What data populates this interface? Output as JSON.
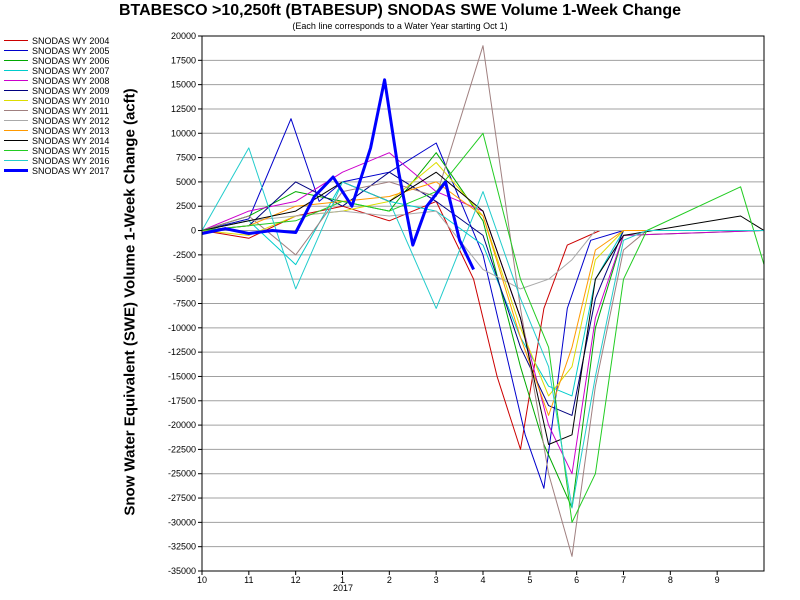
{
  "chart_data": {
    "type": "line",
    "title": "BTABESCO >10,250ft (BTABESUP) SNODAS SWE Volume 1-Week Change",
    "subtitle": "(Each line corresponds to a Water Year starting Oct 1)",
    "ylabel": "Snow Water Equivalent (SWE) Volume 1-Week Change (acft)",
    "xlabel": "",
    "x_axis_label_sub": "2017",
    "ylim": [
      -35000,
      20000
    ],
    "yticks": [
      20000,
      17500,
      15000,
      12500,
      10000,
      7500,
      5000,
      2500,
      0,
      -2500,
      -5000,
      -7500,
      -10000,
      -12500,
      -15000,
      -17500,
      -20000,
      -22500,
      -25000,
      -27500,
      -30000,
      -32500,
      -35000
    ],
    "xlim_months": [
      0,
      12
    ],
    "xticks": [
      {
        "month": 0,
        "label": "10"
      },
      {
        "month": 1,
        "label": "11"
      },
      {
        "month": 2,
        "label": "12"
      },
      {
        "month": 3,
        "label": "1"
      },
      {
        "month": 4,
        "label": "2"
      },
      {
        "month": 5,
        "label": "3"
      },
      {
        "month": 6,
        "label": "4"
      },
      {
        "month": 7,
        "label": "5"
      },
      {
        "month": 8,
        "label": "6"
      },
      {
        "month": 9,
        "label": "7"
      },
      {
        "month": 10,
        "label": "8"
      },
      {
        "month": 11,
        "label": "9"
      }
    ],
    "grid": true,
    "legend_position": "left",
    "series": [
      {
        "name": "SNODAS WY 2004",
        "color": "#cc0000",
        "points": [
          [
            0,
            0
          ],
          [
            1,
            -800
          ],
          [
            2,
            1500
          ],
          [
            3,
            2500
          ],
          [
            4,
            1000
          ],
          [
            5,
            3000
          ],
          [
            5.8,
            -5000
          ],
          [
            6.3,
            -15000
          ],
          [
            6.8,
            -22500
          ],
          [
            7.3,
            -8000
          ],
          [
            7.8,
            -1500
          ],
          [
            8.5,
            0
          ],
          [
            12,
            0
          ]
        ]
      },
      {
        "name": "SNODAS WY 2005",
        "color": "#0000cc",
        "points": [
          [
            0,
            0
          ],
          [
            1,
            1200
          ],
          [
            1.9,
            11500
          ],
          [
            2.5,
            3000
          ],
          [
            3,
            5000
          ],
          [
            4,
            6000
          ],
          [
            5,
            9000
          ],
          [
            6,
            -2500
          ],
          [
            6.9,
            -21000
          ],
          [
            7.3,
            -26500
          ],
          [
            7.8,
            -8000
          ],
          [
            8.3,
            -1000
          ],
          [
            9,
            0
          ],
          [
            12,
            0
          ]
        ]
      },
      {
        "name": "SNODAS WY 2006",
        "color": "#00aa00",
        "points": [
          [
            0,
            0
          ],
          [
            1,
            1500
          ],
          [
            2,
            4000
          ],
          [
            3,
            3000
          ],
          [
            4,
            2000
          ],
          [
            5,
            8000
          ],
          [
            6,
            1000
          ],
          [
            6.8,
            -14000
          ],
          [
            7.3,
            -22000
          ],
          [
            7.9,
            -28500
          ],
          [
            8.4,
            -10000
          ],
          [
            9,
            -500
          ],
          [
            12,
            0
          ]
        ]
      },
      {
        "name": "SNODAS WY 2007",
        "color": "#00cccc",
        "points": [
          [
            0,
            0
          ],
          [
            1,
            1000
          ],
          [
            2,
            -3500
          ],
          [
            3,
            5000
          ],
          [
            4,
            3000
          ],
          [
            5,
            2000
          ],
          [
            6,
            -1500
          ],
          [
            6.8,
            -11000
          ],
          [
            7.4,
            -16000
          ],
          [
            7.9,
            -17000
          ],
          [
            8.4,
            -5000
          ],
          [
            9,
            0
          ],
          [
            12,
            0
          ]
        ]
      },
      {
        "name": "SNODAS WY 2008",
        "color": "#cc00cc",
        "points": [
          [
            0,
            0
          ],
          [
            1,
            2000
          ],
          [
            2,
            3000
          ],
          [
            3,
            6000
          ],
          [
            4,
            8000
          ],
          [
            5,
            4000
          ],
          [
            6,
            2000
          ],
          [
            6.8,
            -9000
          ],
          [
            7.4,
            -20000
          ],
          [
            7.9,
            -25000
          ],
          [
            8.4,
            -9000
          ],
          [
            9,
            -500
          ],
          [
            12,
            0
          ]
        ]
      },
      {
        "name": "SNODAS WY 2009",
        "color": "#000080",
        "points": [
          [
            0,
            0
          ],
          [
            1,
            500
          ],
          [
            2,
            5000
          ],
          [
            3,
            2500
          ],
          [
            4,
            6000
          ],
          [
            5,
            3000
          ],
          [
            6,
            -500
          ],
          [
            6.8,
            -12000
          ],
          [
            7.4,
            -18000
          ],
          [
            7.9,
            -19000
          ],
          [
            8.4,
            -7000
          ],
          [
            9,
            0
          ],
          [
            12,
            0
          ]
        ]
      },
      {
        "name": "SNODAS WY 2010",
        "color": "#dddd00",
        "points": [
          [
            0,
            0
          ],
          [
            1,
            -500
          ],
          [
            2,
            1500
          ],
          [
            3,
            2000
          ],
          [
            4,
            3000
          ],
          [
            5,
            7000
          ],
          [
            6,
            1500
          ],
          [
            6.8,
            -10000
          ],
          [
            7.4,
            -17000
          ],
          [
            7.9,
            -14000
          ],
          [
            8.4,
            -3000
          ],
          [
            9,
            0
          ],
          [
            12,
            0
          ]
        ]
      },
      {
        "name": "SNODAS WY 2011",
        "color": "#a08080",
        "points": [
          [
            0,
            0
          ],
          [
            1,
            1500
          ],
          [
            2,
            -2500
          ],
          [
            3,
            4000
          ],
          [
            4,
            5000
          ],
          [
            5,
            3500
          ],
          [
            6,
            19000
          ],
          [
            6.8,
            -8000
          ],
          [
            7.4,
            -25000
          ],
          [
            7.9,
            -33500
          ],
          [
            8.4,
            -16000
          ],
          [
            9,
            -2000
          ],
          [
            9.5,
            0
          ],
          [
            12,
            0
          ]
        ]
      },
      {
        "name": "SNODAS WY 2012",
        "color": "#aaaaaa",
        "points": [
          [
            0,
            0
          ],
          [
            1,
            1000
          ],
          [
            2,
            1500
          ],
          [
            3,
            2000
          ],
          [
            4,
            1500
          ],
          [
            5,
            2000
          ],
          [
            6,
            -4000
          ],
          [
            6.8,
            -6000
          ],
          [
            7.4,
            -5000
          ],
          [
            7.9,
            -3000
          ],
          [
            8.4,
            0
          ],
          [
            12,
            0
          ]
        ]
      },
      {
        "name": "SNODAS WY 2013",
        "color": "#ff9900",
        "points": [
          [
            0,
            0
          ],
          [
            1,
            500
          ],
          [
            2,
            2500
          ],
          [
            3,
            3000
          ],
          [
            4,
            3500
          ],
          [
            5,
            5000
          ],
          [
            6,
            1500
          ],
          [
            6.8,
            -11000
          ],
          [
            7.4,
            -19000
          ],
          [
            7.9,
            -12000
          ],
          [
            8.4,
            -2000
          ],
          [
            9,
            0
          ],
          [
            12,
            0
          ]
        ]
      },
      {
        "name": "SNODAS WY 2014",
        "color": "#000000",
        "points": [
          [
            0,
            0
          ],
          [
            1,
            1000
          ],
          [
            2,
            2000
          ],
          [
            3,
            5000
          ],
          [
            4,
            3000
          ],
          [
            5,
            6000
          ],
          [
            6,
            2000
          ],
          [
            6.8,
            -9000
          ],
          [
            7.4,
            -22000
          ],
          [
            7.9,
            -21000
          ],
          [
            8.4,
            -5000
          ],
          [
            9,
            -500
          ],
          [
            11.5,
            1500
          ],
          [
            12,
            0
          ]
        ]
      },
      {
        "name": "SNODAS WY 2015",
        "color": "#22cc22",
        "points": [
          [
            0,
            0
          ],
          [
            1,
            500
          ],
          [
            2,
            1000
          ],
          [
            3,
            3000
          ],
          [
            4,
            2000
          ],
          [
            5,
            4000
          ],
          [
            6,
            10000
          ],
          [
            6.8,
            -5000
          ],
          [
            7.4,
            -12000
          ],
          [
            7.9,
            -30000
          ],
          [
            8.4,
            -25000
          ],
          [
            9,
            -5000
          ],
          [
            9.5,
            0
          ],
          [
            11.5,
            4500
          ],
          [
            12,
            -3500
          ]
        ]
      },
      {
        "name": "SNODAS WY 2016",
        "color": "#22cccc",
        "points": [
          [
            0,
            0
          ],
          [
            1,
            8500
          ],
          [
            2,
            -6000
          ],
          [
            3,
            5000
          ],
          [
            4,
            3000
          ],
          [
            5,
            -8000
          ],
          [
            6,
            4000
          ],
          [
            6.8,
            -7000
          ],
          [
            7.4,
            -14000
          ],
          [
            7.9,
            -28500
          ],
          [
            8.4,
            -15000
          ],
          [
            9,
            -1000
          ],
          [
            9.5,
            0
          ],
          [
            12,
            0
          ]
        ]
      },
      {
        "name": "SNODAS WY 2017",
        "color": "#0000ff",
        "bold": true,
        "points": [
          [
            0,
            -300
          ],
          [
            0.5,
            200
          ],
          [
            1,
            -300
          ],
          [
            1.5,
            0
          ],
          [
            2,
            -200
          ],
          [
            2.4,
            3500
          ],
          [
            2.8,
            5500
          ],
          [
            3.2,
            2500
          ],
          [
            3.6,
            8500
          ],
          [
            3.9,
            15500
          ],
          [
            4.2,
            6000
          ],
          [
            4.5,
            -1500
          ],
          [
            4.8,
            2500
          ],
          [
            5.2,
            5000
          ],
          [
            5.5,
            -1000
          ],
          [
            5.8,
            -4000
          ]
        ]
      }
    ]
  }
}
